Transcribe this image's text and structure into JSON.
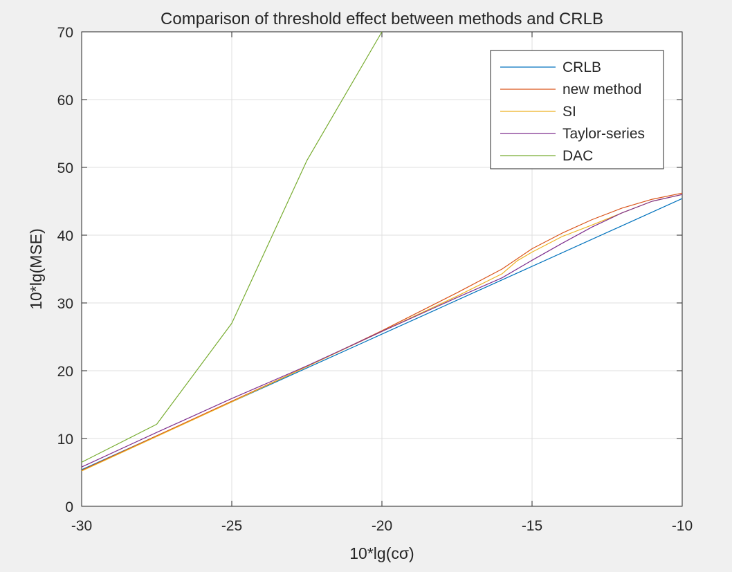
{
  "chart_data": {
    "type": "line",
    "title": "Comparison of threshold effect between methods and CRLB",
    "xlabel": "10*lg(cσ)",
    "ylabel": "10*lg(MSE)",
    "xlim": [
      -30,
      -10
    ],
    "ylim": [
      0,
      70
    ],
    "xticks": [
      -30,
      -25,
      -20,
      -15,
      -10
    ],
    "yticks": [
      0,
      10,
      20,
      30,
      40,
      50,
      60,
      70
    ],
    "xtick_labels": [
      "-30",
      "-25",
      "-20",
      "-15",
      "-10"
    ],
    "ytick_labels": [
      "0",
      "10",
      "20",
      "30",
      "40",
      "50",
      "60",
      "70"
    ],
    "grid": true,
    "legend_position": "top-right",
    "series": [
      {
        "name": "CRLB",
        "color": "#0072bd",
        "x": [
          -30,
          -27.5,
          -25,
          -22.5,
          -20,
          -17.5,
          -15,
          -12.5,
          -10
        ],
        "y": [
          5.4,
          10.4,
          15.4,
          20.4,
          25.4,
          30.4,
          35.4,
          40.4,
          45.4
        ]
      },
      {
        "name": "new method",
        "color": "#d95319",
        "x": [
          -30,
          -27.5,
          -25,
          -22.5,
          -20,
          -17.5,
          -16,
          -15,
          -14,
          -13,
          -12,
          -11,
          -10
        ],
        "y": [
          5.3,
          10.4,
          15.5,
          20.6,
          25.9,
          31.5,
          35.0,
          38.0,
          40.3,
          42.3,
          44.0,
          45.3,
          46.2
        ]
      },
      {
        "name": "SI",
        "color": "#edb120",
        "x": [
          -30,
          -27.5,
          -25,
          -22.5,
          -20,
          -17.5,
          -16,
          -15.5,
          -15,
          -14,
          -13,
          -12,
          -11,
          -10
        ],
        "y": [
          5.2,
          10.3,
          15.4,
          20.6,
          25.8,
          31.0,
          34.3,
          36.2,
          37.5,
          39.8,
          41.5,
          43.3,
          45.0,
          46.0
        ]
      },
      {
        "name": "Taylor-series",
        "color": "#7e2f8e",
        "x": [
          -30,
          -27.5,
          -25,
          -22.5,
          -20,
          -17.5,
          -16,
          -15,
          -14,
          -13,
          -12,
          -11,
          -10
        ],
        "y": [
          5.8,
          10.9,
          15.9,
          20.7,
          25.8,
          30.8,
          33.7,
          36.3,
          38.8,
          41.2,
          43.3,
          45.0,
          46.0
        ]
      },
      {
        "name": "DAC",
        "color": "#77ac30",
        "x": [
          -30,
          -27.5,
          -25,
          -22.5,
          -20
        ],
        "y": [
          6.5,
          12.1,
          27.0,
          51.0,
          70.0
        ]
      }
    ]
  }
}
